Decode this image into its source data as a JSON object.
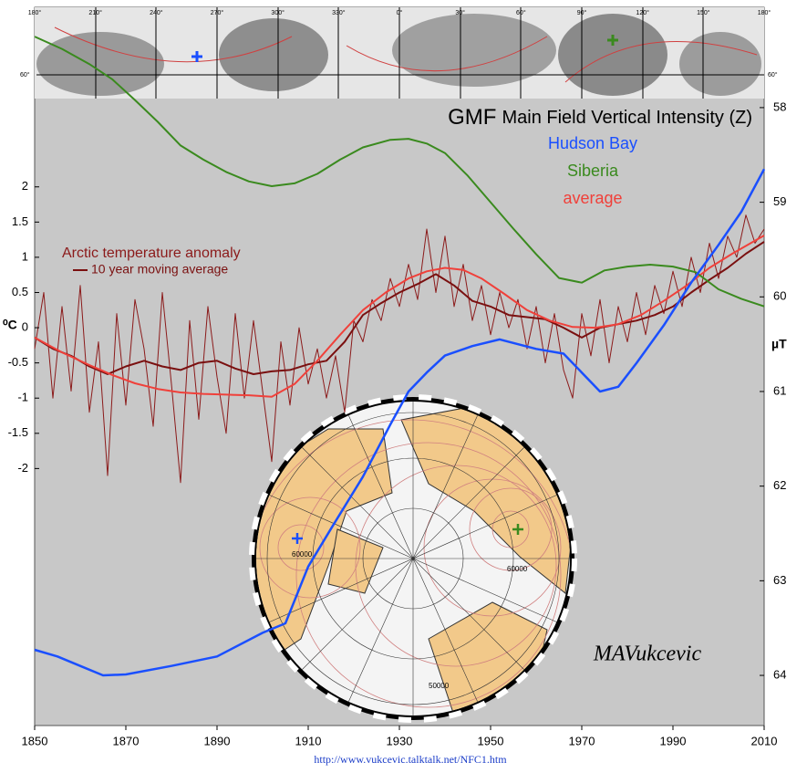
{
  "chart_data": {
    "type": "line",
    "title": "GMF",
    "subtitle": "Main Field Vertical Intensity (Z)",
    "y_label": "⁰C",
    "y2_label": "µT",
    "annotations": {
      "author": "MAVukcevic",
      "url": "http://www.vukcevic.talktalk.net/NFC1.htm"
    },
    "map_strip": {
      "longitudes": [
        "180°",
        "210°",
        "240°",
        "270°",
        "300°",
        "330°",
        "0°",
        "30°",
        "60°",
        "90°",
        "120°",
        "150°",
        "180°"
      ],
      "latitude_left": "60°",
      "latitude_right": "60°"
    },
    "polar_map": {
      "contour_labels": [
        "60000",
        "60000",
        "50000"
      ]
    },
    "xlim": [
      1850,
      2010
    ],
    "xticks": [
      1850,
      1870,
      1890,
      1910,
      1930,
      1950,
      1970,
      1990,
      2010
    ],
    "ylim": [
      -5.65,
      4.55
    ],
    "yticks": [
      -2,
      -1.5,
      -1,
      -0.5,
      0,
      0.5,
      1,
      1.5,
      2
    ],
    "y2lim": [
      64.53,
      56.94
    ],
    "y2ticks": [
      58,
      59,
      60,
      61,
      62,
      63,
      64
    ],
    "series": [
      {
        "name": "Arctic temperature anomaly",
        "color": "#8b1a1a",
        "x": [
          1850,
          1852,
          1854,
          1856,
          1858,
          1860,
          1862,
          1864,
          1866,
          1868,
          1870,
          1872,
          1874,
          1876,
          1878,
          1880,
          1882,
          1884,
          1886,
          1888,
          1890,
          1892,
          1894,
          1896,
          1898,
          1900,
          1902,
          1904,
          1906,
          1908,
          1910,
          1912,
          1914,
          1916,
          1918,
          1920,
          1922,
          1924,
          1926,
          1928,
          1930,
          1932,
          1934,
          1936,
          1938,
          1940,
          1942,
          1944,
          1946,
          1948,
          1950,
          1952,
          1954,
          1956,
          1958,
          1960,
          1962,
          1964,
          1966,
          1968,
          1970,
          1972,
          1974,
          1976,
          1978,
          1980,
          1982,
          1984,
          1986,
          1988,
          1990,
          1992,
          1994,
          1996,
          1998,
          2000,
          2002,
          2004,
          2006,
          2008,
          2010
        ],
        "values": [
          -0.3,
          0.5,
          -1.0,
          0.3,
          -0.9,
          0.6,
          -1.2,
          -0.2,
          -2.1,
          0.2,
          -1.1,
          0.4,
          -0.3,
          -1.4,
          0.5,
          -0.8,
          -2.2,
          0.1,
          -1.3,
          0.3,
          -0.7,
          -1.5,
          0.2,
          -1.0,
          0.1,
          -0.9,
          -1.9,
          -0.2,
          -1.1,
          0.0,
          -0.8,
          -0.3,
          -1.0,
          -0.4,
          -1.2,
          0.1,
          -0.2,
          0.4,
          0.1,
          0.7,
          0.3,
          0.9,
          0.4,
          1.4,
          0.5,
          1.3,
          0.3,
          0.9,
          0.1,
          0.6,
          -0.1,
          0.5,
          0.0,
          0.4,
          -0.3,
          0.3,
          -0.5,
          0.2,
          -0.6,
          -1.0,
          0.2,
          -0.4,
          0.4,
          -0.5,
          0.3,
          -0.2,
          0.5,
          -0.1,
          0.6,
          0.2,
          0.8,
          0.3,
          1.0,
          0.5,
          1.2,
          0.7,
          1.3,
          1.0,
          1.6,
          1.2,
          1.4
        ]
      },
      {
        "name": "10 year moving average",
        "color": "#7a1010",
        "x": [
          1850,
          1854,
          1858,
          1862,
          1866,
          1870,
          1874,
          1878,
          1882,
          1886,
          1890,
          1894,
          1898,
          1902,
          1906,
          1910,
          1914,
          1918,
          1922,
          1926,
          1930,
          1934,
          1938,
          1942,
          1946,
          1950,
          1954,
          1958,
          1962,
          1966,
          1970,
          1974,
          1978,
          1982,
          1986,
          1990,
          1994,
          1998,
          2002,
          2006,
          2010
        ],
        "values": [
          -0.14,
          -0.3,
          -0.4,
          -0.55,
          -0.66,
          -0.55,
          -0.47,
          -0.55,
          -0.6,
          -0.5,
          -0.47,
          -0.58,
          -0.66,
          -0.62,
          -0.6,
          -0.52,
          -0.47,
          -0.2,
          0.18,
          0.35,
          0.5,
          0.62,
          0.76,
          0.6,
          0.38,
          0.3,
          0.18,
          0.15,
          0.12,
          0.0,
          -0.14,
          0.0,
          0.05,
          0.1,
          0.18,
          0.3,
          0.5,
          0.68,
          0.85,
          1.05,
          1.22
        ]
      },
      {
        "name": "average",
        "color": "#f0403a",
        "x": [
          1850,
          1856,
          1862,
          1867,
          1872,
          1877,
          1882,
          1887,
          1892,
          1897,
          1902,
          1907,
          1912,
          1917,
          1922,
          1927,
          1932,
          1936,
          1940,
          1944,
          1948,
          1953,
          1958,
          1963,
          1968,
          1973,
          1978,
          1983,
          1988,
          1993,
          1998,
          2003,
          2010
        ],
        "values": [
          -0.14,
          -0.35,
          -0.53,
          -0.67,
          -0.79,
          -0.87,
          -0.92,
          -0.94,
          -0.95,
          -0.96,
          -0.98,
          -0.8,
          -0.47,
          -0.1,
          0.25,
          0.5,
          0.7,
          0.8,
          0.85,
          0.82,
          0.7,
          0.48,
          0.25,
          0.1,
          0.01,
          0.0,
          0.05,
          0.18,
          0.38,
          0.6,
          0.85,
          1.05,
          1.31
        ]
      },
      {
        "name": "Siberia",
        "color": "#3a8a1e",
        "axis": "y2",
        "x": [
          1850,
          1856,
          1862,
          1867,
          1872,
          1877,
          1882,
          1887,
          1892,
          1897,
          1902,
          1907,
          1912,
          1917,
          1922,
          1928,
          1932,
          1936,
          1940,
          1945,
          1950,
          1955,
          1960,
          1965,
          1970,
          1975,
          1980,
          1985,
          1990,
          1995,
          2000,
          2005,
          2010
        ],
        "values": [
          57.25,
          57.38,
          57.54,
          57.7,
          57.92,
          58.15,
          58.4,
          58.55,
          58.68,
          58.78,
          58.83,
          58.8,
          58.7,
          58.55,
          58.42,
          58.34,
          58.33,
          58.38,
          58.48,
          58.72,
          59.0,
          59.28,
          59.55,
          59.8,
          59.85,
          59.72,
          59.68,
          59.66,
          59.68,
          59.74,
          59.92,
          60.02,
          60.1
        ]
      },
      {
        "name": "Hudson Bay",
        "color": "#1a4fff",
        "axis": "y2",
        "x": [
          1850,
          1855,
          1860,
          1865,
          1870,
          1880,
          1890,
          1900,
          1905,
          1910,
          1915,
          1922,
          1928,
          1932,
          1936,
          1940,
          1946,
          1952,
          1960,
          1966,
          1970,
          1974,
          1978,
          1982,
          1988,
          1994,
          2000,
          2005,
          2010
        ],
        "values": [
          63.73,
          63.8,
          63.9,
          64.0,
          63.99,
          63.9,
          63.8,
          63.55,
          63.45,
          62.85,
          62.45,
          61.9,
          61.35,
          61.0,
          60.8,
          60.62,
          60.52,
          60.45,
          60.55,
          60.6,
          60.8,
          61.0,
          60.95,
          60.7,
          60.3,
          59.85,
          59.45,
          59.1,
          58.65
        ]
      }
    ]
  }
}
